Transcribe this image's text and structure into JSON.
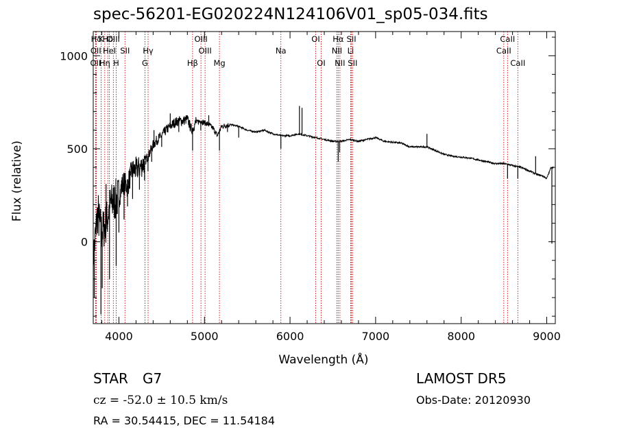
{
  "title": "spec-56201-EG020224N124106V01_sp05-034.fits",
  "footer": {
    "object_class": "STAR",
    "subclass": "G7",
    "survey": "LAMOST DR5",
    "redshift_text": "cz = -52.0 ± 10.5 km/s",
    "obs_date_text": "Obs-Date: 20120930",
    "coords_text": "RA =  30.54415, DEC =  11.54184"
  },
  "chart_data": {
    "type": "line",
    "xlabel": "Wavelength (Å)",
    "ylabel": "Flux (relative)",
    "xlim": [
      3700,
      9100
    ],
    "ylim": [
      -440,
      1130
    ],
    "xticks": [
      4000,
      5000,
      6000,
      7000,
      8000,
      9000
    ],
    "yticks": [
      0,
      500,
      1000
    ],
    "line_color": "#000000",
    "marker_color": "#cc0000",
    "lines": [
      {
        "label": "Hδ",
        "x": 3736,
        "row": 0
      },
      {
        "label": "K",
        "x": 3792,
        "row": 0
      },
      {
        "label": "Hδ",
        "x": 3870,
        "row": 0
      },
      {
        "label": "OIII",
        "x": 3935,
        "row": 0
      },
      {
        "label": "OII",
        "x": 3730,
        "row": 1
      },
      {
        "label": "HeI",
        "x": 3889,
        "row": 1
      },
      {
        "label": "SII",
        "x": 4071,
        "row": 1
      },
      {
        "label": "Hγ",
        "x": 4341,
        "row": 1
      },
      {
        "label": "OII",
        "x": 3727,
        "row": 2
      },
      {
        "label": "Hη",
        "x": 3835,
        "row": 2
      },
      {
        "label": "H",
        "x": 3968,
        "row": 2
      },
      {
        "label": "G",
        "x": 4305,
        "row": 2
      },
      {
        "label": "OIII",
        "x": 4959,
        "row": 0
      },
      {
        "label": "OIII",
        "x": 5007,
        "row": 1
      },
      {
        "label": "Hβ",
        "x": 4861,
        "row": 2
      },
      {
        "label": "Mg",
        "x": 5175,
        "row": 2
      },
      {
        "label": "Na",
        "x": 5893,
        "row": 1
      },
      {
        "label": "OI",
        "x": 6300,
        "row": 0
      },
      {
        "label": "OI",
        "x": 6364,
        "row": 2
      },
      {
        "label": "Hα",
        "x": 6563,
        "row": 0
      },
      {
        "label": "SII",
        "x": 6717,
        "row": 0
      },
      {
        "label": "NII",
        "x": 6548,
        "row": 1
      },
      {
        "label": "Li",
        "x": 6708,
        "row": 1
      },
      {
        "label": "NII",
        "x": 6583,
        "row": 2
      },
      {
        "label": "SII",
        "x": 6731,
        "row": 2
      },
      {
        "label": "CaII",
        "x": 8542,
        "row": 0
      },
      {
        "label": "CaII",
        "x": 8498,
        "row": 1
      },
      {
        "label": "CaII",
        "x": 8662,
        "row": 2
      }
    ],
    "spectrum_x": [
      3700,
      3750,
      3800,
      3850,
      3900,
      3950,
      4000,
      4050,
      4100,
      4150,
      4200,
      4250,
      4300,
      4350,
      4400,
      4450,
      4500,
      4550,
      4600,
      4650,
      4700,
      4750,
      4800,
      4850,
      4900,
      4950,
      5000,
      5050,
      5100,
      5150,
      5200,
      5300,
      5400,
      5500,
      5600,
      5700,
      5800,
      5900,
      6000,
      6100,
      6200,
      6300,
      6400,
      6500,
      6600,
      6700,
      6800,
      6900,
      7000,
      7100,
      7200,
      7300,
      7400,
      7500,
      7600,
      7700,
      7800,
      7900,
      8000,
      8100,
      8200,
      8300,
      8400,
      8500,
      8600,
      8700,
      8800,
      8900,
      8950,
      9000,
      9050,
      9100
    ],
    "spectrum_y": [
      -100,
      150,
      50,
      100,
      200,
      220,
      240,
      320,
      300,
      380,
      390,
      400,
      430,
      470,
      520,
      550,
      570,
      600,
      620,
      640,
      650,
      650,
      660,
      600,
      640,
      650,
      640,
      630,
      610,
      570,
      620,
      630,
      620,
      600,
      590,
      600,
      580,
      570,
      570,
      580,
      570,
      560,
      550,
      540,
      540,
      550,
      540,
      550,
      560,
      540,
      535,
      530,
      510,
      510,
      510,
      490,
      470,
      460,
      455,
      450,
      440,
      430,
      420,
      420,
      410,
      400,
      380,
      360,
      355,
      340,
      400,
      400
    ],
    "spikes": [
      {
        "x": 3712,
        "y": -300
      },
      {
        "x": 3760,
        "y": 250
      },
      {
        "x": 3790,
        "y": -390
      },
      {
        "x": 3805,
        "y": -250
      },
      {
        "x": 3850,
        "y": 310
      },
      {
        "x": 3890,
        "y": -200
      },
      {
        "x": 3935,
        "y": 290
      },
      {
        "x": 3968,
        "y": -130
      },
      {
        "x": 4000,
        "y": 50
      },
      {
        "x": 4030,
        "y": 330
      },
      {
        "x": 4060,
        "y": 120
      },
      {
        "x": 4101,
        "y": 190
      },
      {
        "x": 4135,
        "y": 380
      },
      {
        "x": 4160,
        "y": 230
      },
      {
        "x": 4200,
        "y": 430
      },
      {
        "x": 4240,
        "y": 280
      },
      {
        "x": 4300,
        "y": 330
      },
      {
        "x": 4340,
        "y": 380
      },
      {
        "x": 4383,
        "y": 430
      },
      {
        "x": 4410,
        "y": 600
      },
      {
        "x": 4500,
        "y": 510
      },
      {
        "x": 4600,
        "y": 690
      },
      {
        "x": 4700,
        "y": 590
      },
      {
        "x": 4800,
        "y": 680
      },
      {
        "x": 4861,
        "y": 490
      },
      {
        "x": 4900,
        "y": 670
      },
      {
        "x": 4957,
        "y": 600
      },
      {
        "x": 5050,
        "y": 680
      },
      {
        "x": 5175,
        "y": 490
      },
      {
        "x": 5269,
        "y": 590
      },
      {
        "x": 5400,
        "y": 560
      },
      {
        "x": 5893,
        "y": 500
      },
      {
        "x": 6110,
        "y": 730
      },
      {
        "x": 6140,
        "y": 720
      },
      {
        "x": 6563,
        "y": 430
      },
      {
        "x": 6580,
        "y": 480
      },
      {
        "x": 7600,
        "y": 580
      },
      {
        "x": 8542,
        "y": 340
      },
      {
        "x": 8662,
        "y": 340
      },
      {
        "x": 8870,
        "y": 460
      },
      {
        "x": 9060,
        "y": -10
      }
    ]
  }
}
